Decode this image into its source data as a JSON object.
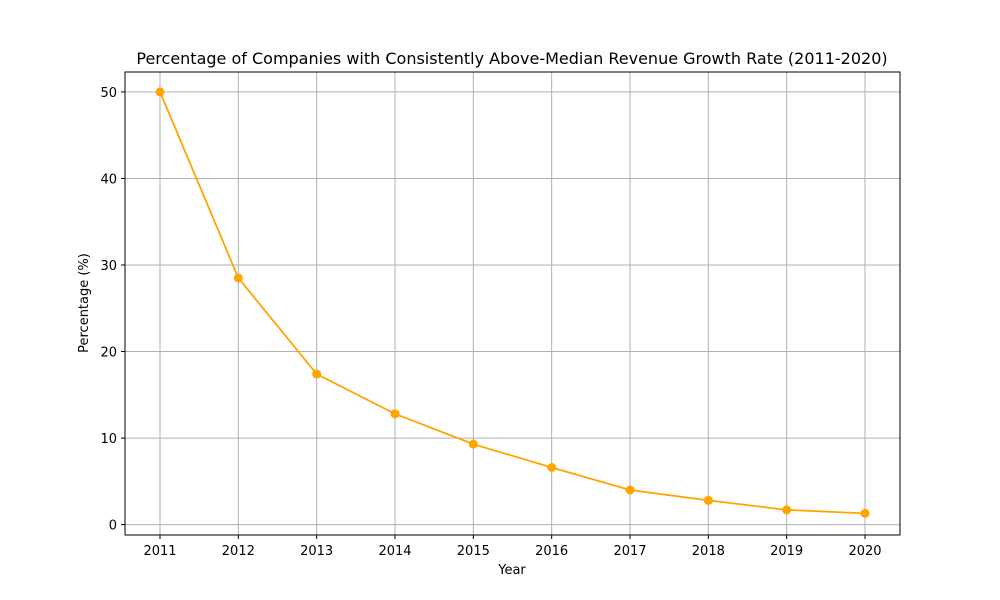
{
  "chart_data": {
    "type": "line",
    "title": "Percentage of Companies with Consistently Above-Median Revenue Growth Rate (2011-2020)",
    "xlabel": "Year",
    "ylabel": "Percentage (%)",
    "x": [
      "2011",
      "2012",
      "2013",
      "2014",
      "2015",
      "2016",
      "2017",
      "2018",
      "2019",
      "2020"
    ],
    "series": [
      {
        "values": [
          50.0,
          28.5,
          17.4,
          12.8,
          9.3,
          6.6,
          4.0,
          2.8,
          1.7,
          1.3
        ],
        "color": "#ffa500",
        "marker": "circle"
      }
    ],
    "yticks": [
      0,
      10,
      20,
      30,
      40,
      50
    ],
    "ylim": [
      -1.2,
      52.3
    ],
    "grid": true
  }
}
